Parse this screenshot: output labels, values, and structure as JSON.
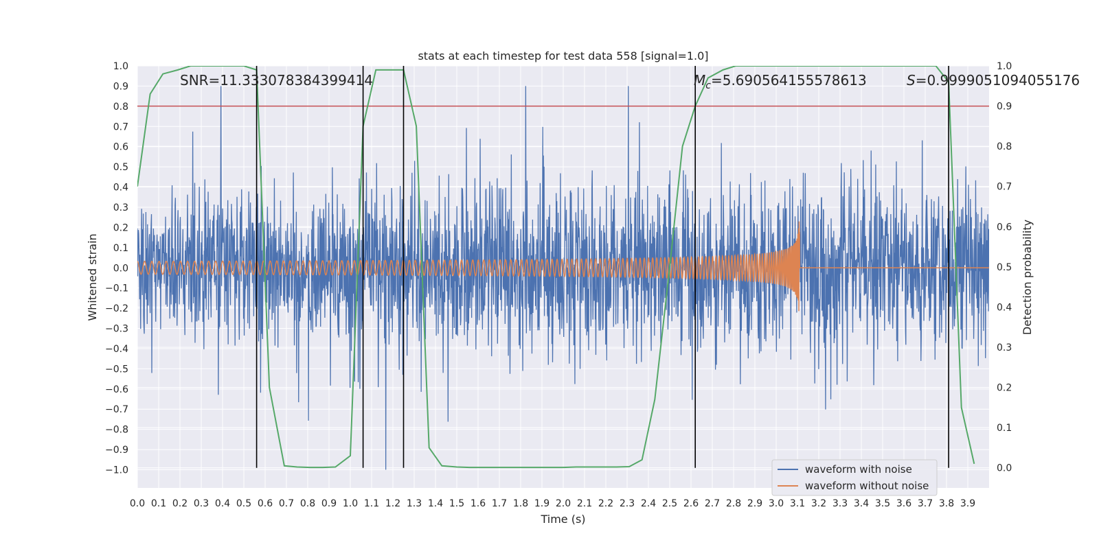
{
  "chart_data": {
    "type": "line",
    "title": "stats at each timestep for test data 558 [signal=1.0]",
    "xlabel": "Time (s)",
    "ylabel_left": "Whitened strain",
    "ylabel_right": "Detection probability",
    "xlim": [
      0.0,
      4.0
    ],
    "ylim_left": [
      -1.09,
      1.0
    ],
    "ylim_right": [
      -0.05,
      1.0
    ],
    "x_ticks": [
      "0.0",
      "0.1",
      "0.2",
      "0.3",
      "0.4",
      "0.5",
      "0.6",
      "0.7",
      "0.8",
      "0.9",
      "1.0",
      "1.1",
      "1.2",
      "1.3",
      "1.4",
      "1.5",
      "1.6",
      "1.7",
      "1.8",
      "1.9",
      "2.0",
      "2.1",
      "2.2",
      "2.3",
      "2.4",
      "2.5",
      "2.6",
      "2.7",
      "2.8",
      "2.9",
      "3.0",
      "3.1",
      "3.2",
      "3.3",
      "3.4",
      "3.5",
      "3.6",
      "3.7",
      "3.8",
      "3.9"
    ],
    "y_ticks_left": [
      "1.0",
      "0.9",
      "0.8",
      "0.7",
      "0.6",
      "0.5",
      "0.4",
      "0.3",
      "0.2",
      "0.1",
      "0.0",
      "−0.1",
      "−0.2",
      "−0.3",
      "−0.4",
      "−0.5",
      "−0.6",
      "−0.7",
      "−0.8",
      "−0.9",
      "−1.0"
    ],
    "y_ticks_right": [
      "1.0",
      "0.9",
      "0.8",
      "0.7",
      "0.6",
      "0.5",
      "0.4",
      "0.3",
      "0.2",
      "0.1",
      "0.0"
    ],
    "grid": true,
    "legend_position": "lower-right",
    "threshold": 0.9,
    "vertical_markers": [
      0.56,
      1.06,
      1.25,
      2.62,
      3.81
    ],
    "annotations": {
      "snr": "SNR=11.333078384399414",
      "mc_symbol": "M",
      "mc_subscript": "c",
      "mc_value": "=5.690564155578613",
      "s_symbol": "S",
      "s_value": "=0.9999051094055176"
    },
    "series": [
      {
        "name": "waveform with noise",
        "color": "#4c72b0",
        "axis": "left",
        "description_range": [
          -1.0,
          0.9
        ],
        "noise_amplitude": 0.2
      },
      {
        "name": "waveform without noise",
        "color": "#dd8452",
        "axis": "left",
        "chirp_end": 3.11,
        "peak_amplitude": 0.34
      },
      {
        "name": "",
        "color": "#55a868",
        "axis": "right",
        "x": [
          0.0,
          0.06,
          0.12,
          0.19,
          0.25,
          0.31,
          0.37,
          0.44,
          0.5,
          0.56,
          0.62,
          0.69,
          0.75,
          0.81,
          0.87,
          0.93,
          1.0,
          1.06,
          1.12,
          1.19,
          1.25,
          1.31,
          1.37,
          1.43,
          1.5,
          1.56,
          1.62,
          1.68,
          1.75,
          1.81,
          1.87,
          1.93,
          2.0,
          2.06,
          2.12,
          2.18,
          2.25,
          2.31,
          2.37,
          2.43,
          2.5,
          2.56,
          2.62,
          2.68,
          2.75,
          2.81,
          2.87,
          2.93,
          3.0,
          3.06,
          3.12,
          3.18,
          3.25,
          3.31,
          3.37,
          3.43,
          3.5,
          3.56,
          3.62,
          3.68,
          3.75,
          3.81,
          3.87,
          3.93
        ],
        "values": [
          0.7,
          0.93,
          0.98,
          0.99,
          1.0,
          1.0,
          1.0,
          1.0,
          1.0,
          0.99,
          0.2,
          0.005,
          0.002,
          0.001,
          0.001,
          0.002,
          0.03,
          0.85,
          0.99,
          0.99,
          0.99,
          0.85,
          0.05,
          0.005,
          0.002,
          0.001,
          0.001,
          0.001,
          0.001,
          0.001,
          0.001,
          0.001,
          0.001,
          0.002,
          0.002,
          0.002,
          0.002,
          0.003,
          0.02,
          0.17,
          0.5,
          0.8,
          0.9,
          0.97,
          0.99,
          1.0,
          1.0,
          1.0,
          1.0,
          1.0,
          1.0,
          1.0,
          1.0,
          1.0,
          1.0,
          1.0,
          1.0,
          1.0,
          1.0,
          1.0,
          1.0,
          0.96,
          0.15,
          0.01
        ]
      }
    ]
  }
}
